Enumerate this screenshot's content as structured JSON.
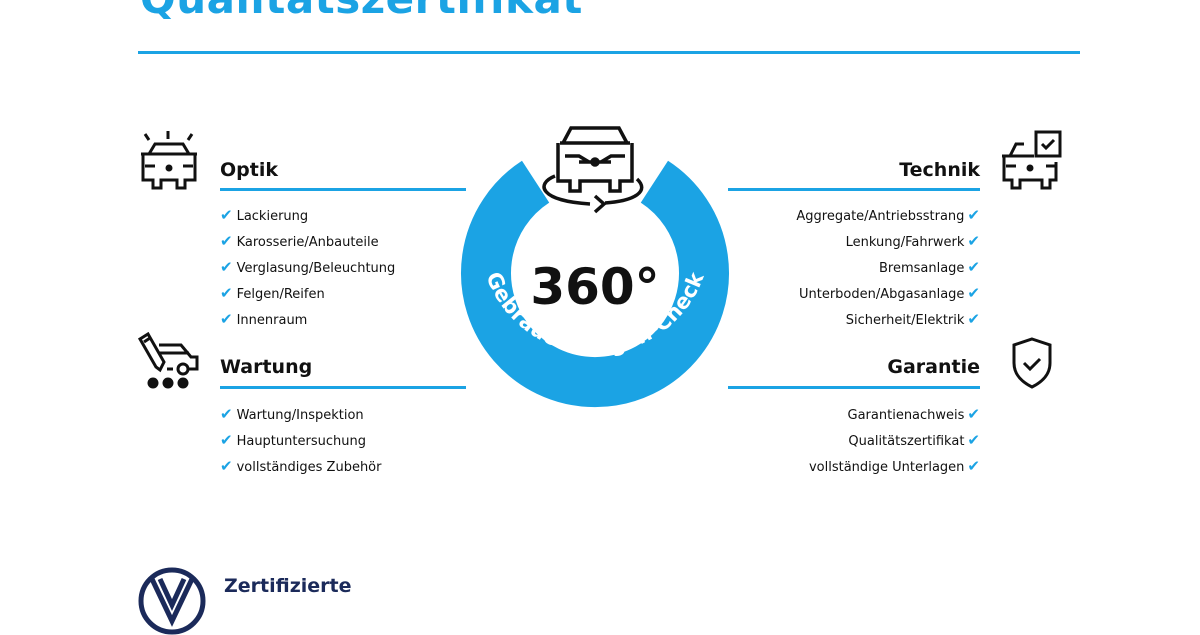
{
  "title": "Qualitätszertifikat",
  "badge": {
    "value": "360°",
    "ring_text": "Gebrauchtwagen-Check",
    "color": "#1ba3e4"
  },
  "sections": {
    "optik": {
      "heading": "Optik",
      "icon": "car-lights-icon",
      "items": [
        "Lackierung",
        "Karosserie/Anbauteile",
        "Verglasung/Beleuchtung",
        "Felgen/Reifen",
        "Innenraum"
      ]
    },
    "wartung": {
      "heading": "Wartung",
      "icon": "service-van-icon",
      "items": [
        "Wartung/Inspektion",
        "Hauptuntersuchung",
        "vollständiges Zubehör"
      ]
    },
    "technik": {
      "heading": "Technik",
      "icon": "car-checkbox-icon",
      "items": [
        "Aggregate/Antriebsstrang",
        "Lenkung/Fahrwerk",
        "Bremsanlage",
        "Unterboden/Abgasanlage",
        "Sicherheit/Elektrik"
      ]
    },
    "garantie": {
      "heading": "Garantie",
      "icon": "shield-check-icon",
      "items": [
        "Garantienachweis",
        "Qualitätszertifikat",
        "vollständige Unterlagen"
      ]
    }
  },
  "check_mark": "✔",
  "footer": {
    "brand_text": "Zertifizierte",
    "logo": "vw-logo",
    "color": "#1b2a5a"
  }
}
